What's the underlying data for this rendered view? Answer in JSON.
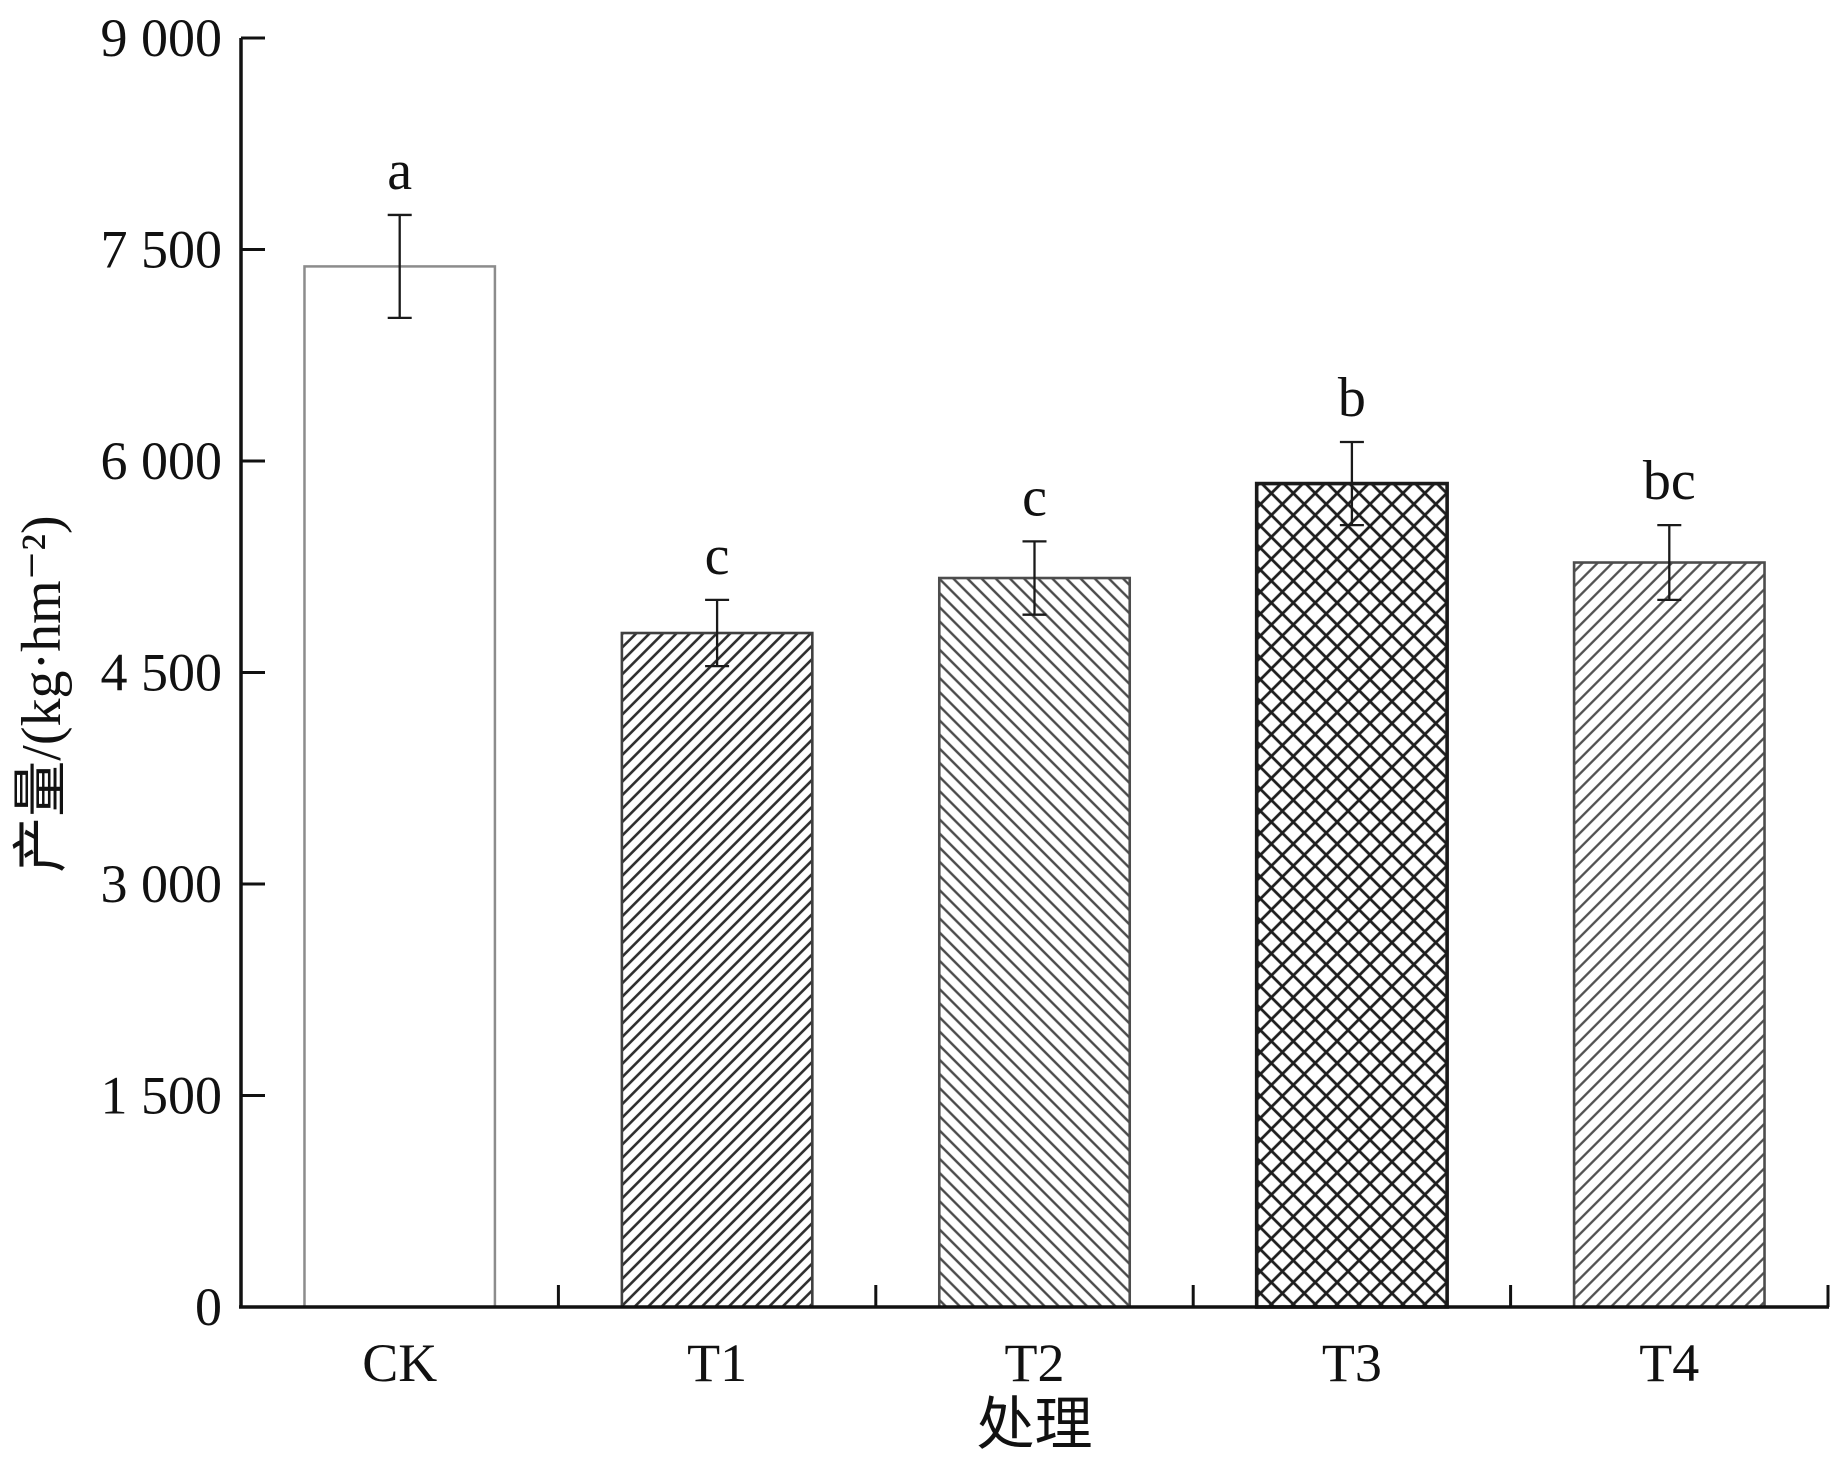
{
  "chart_data": {
    "type": "bar",
    "categories": [
      "CK",
      "T1",
      "T2",
      "T3",
      "T4"
    ],
    "values": [
      7380,
      4780,
      5170,
      5840,
      5280
    ],
    "errors": [
      365,
      235,
      260,
      295,
      265
    ],
    "significance": [
      "a",
      "c",
      "c",
      "b",
      "bc"
    ],
    "fills": [
      "white",
      "hatch-forward",
      "hatch-backward",
      "crosshatch",
      "hatch-forward-light"
    ],
    "xlabel": "处理",
    "ylabel": "产量/(kg·hm⁻²)",
    "ylim": [
      0,
      9000
    ],
    "yticks": [
      0,
      1500,
      3000,
      4500,
      6000,
      7500,
      9000
    ],
    "ytick_labels": [
      "0",
      "1 500",
      "3 000",
      "4 500",
      "6 000",
      "7 500",
      "9 000"
    ],
    "grid": false
  }
}
